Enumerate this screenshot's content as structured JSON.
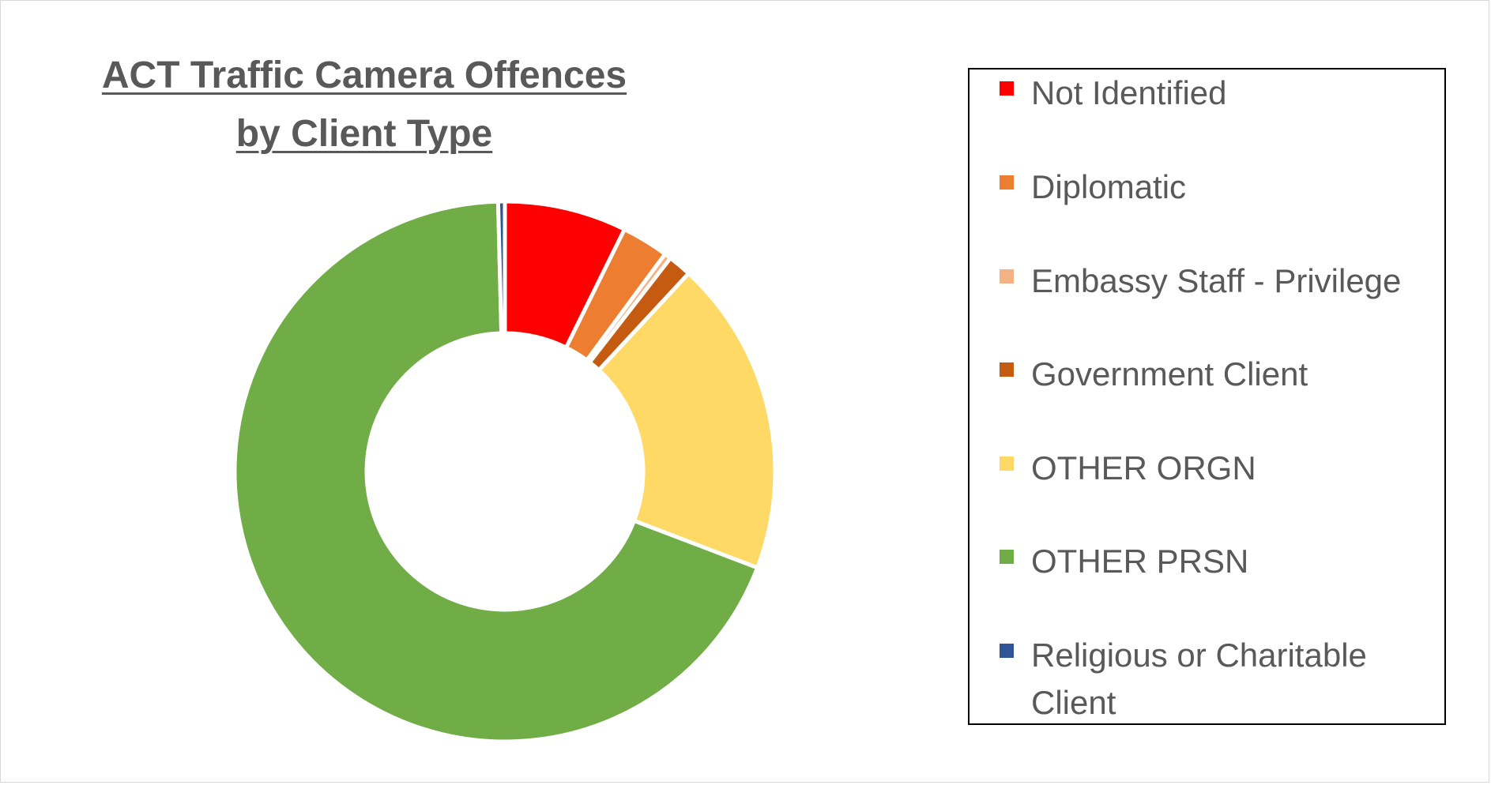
{
  "chart_data": {
    "type": "pie",
    "title": "ACT Traffic Camera Offences by Client Type",
    "title_lines": [
      "ACT Traffic Camera Offences",
      "by Client Type"
    ],
    "donut": true,
    "legend_position": "right",
    "categories": [
      "Not Identified",
      "Diplomatic",
      "Embassy Staff - Privilege",
      "Government Client",
      "OTHER ORGN",
      "OTHER PRSN",
      "Religious or Charitable Client"
    ],
    "values": [
      7.3,
      2.8,
      0.4,
      1.4,
      18.9,
      68.8,
      0.4
    ],
    "colors": [
      "#FF0000",
      "#ED7D31",
      "#F4B183",
      "#C55A11",
      "#FFD966",
      "#70AD47",
      "#2F5597"
    ]
  },
  "legend": {
    "items": [
      {
        "label": "Not Identified",
        "color": "#FF0000"
      },
      {
        "label": "Diplomatic",
        "color": "#ED7D31"
      },
      {
        "label": "Embassy Staff - Privilege",
        "color": "#F4B183"
      },
      {
        "label": "Government Client",
        "color": "#C55A11"
      },
      {
        "label": "OTHER ORGN",
        "color": "#FFD966"
      },
      {
        "label": "OTHER PRSN",
        "color": "#70AD47"
      },
      {
        "label": "Religious or Charitable Client",
        "color": "#2F5597"
      }
    ]
  }
}
